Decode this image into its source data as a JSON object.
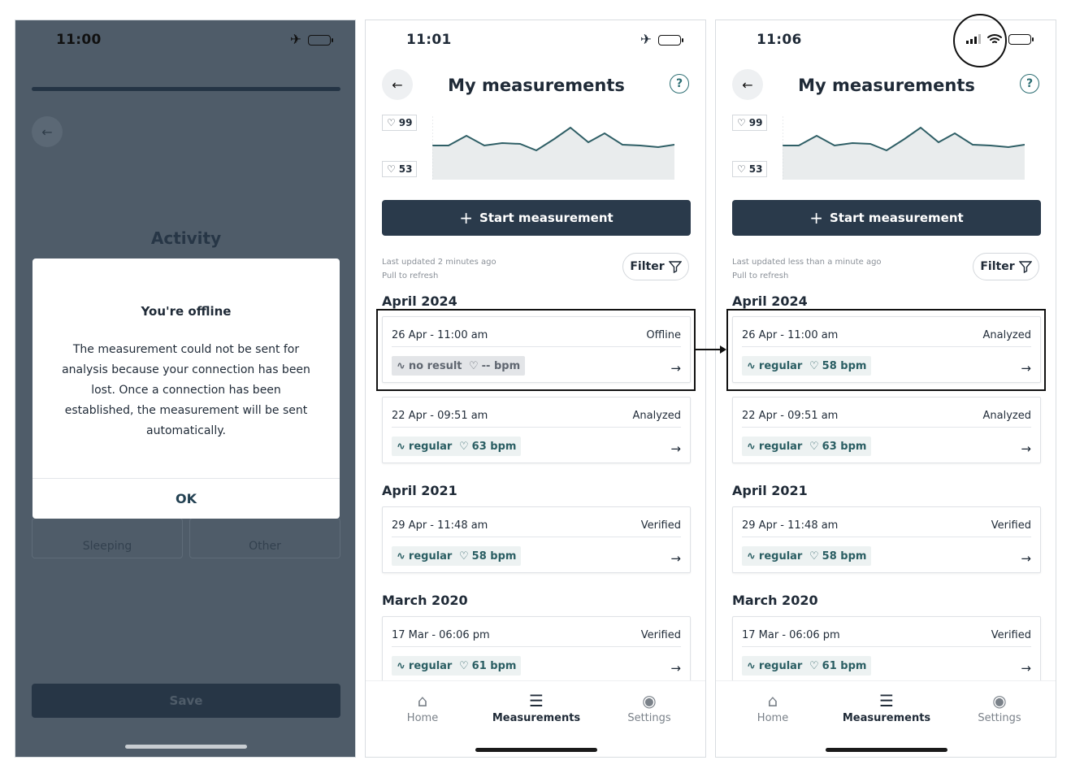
{
  "screens": {
    "offline_dialog": {
      "time": "11:00",
      "activity_title": "Activity",
      "options": [
        "Sleeping",
        "Other"
      ],
      "save_label": "Save",
      "dialog": {
        "title": "You're offline",
        "body": "The measurement could not be sent for analysis because your connection has been lost. Once a connection has been established, the measurement will be sent automatically.",
        "ok_label": "OK"
      }
    },
    "offline_list": {
      "time": "11:01",
      "title": "My measurements",
      "hr_max": "99",
      "hr_min": "53",
      "start_label": "Start measurement",
      "last_updated": "Last updated 2 minutes ago",
      "pull_hint": "Pull to refresh",
      "filter_label": "Filter",
      "groups": [
        {
          "month": "April 2024",
          "items": [
            {
              "date": "26 Apr - 11:00 am",
              "status": "Offline",
              "rhythm": "no result",
              "bpm": "-- bpm"
            },
            {
              "date": "22 Apr - 09:51 am",
              "status": "Analyzed",
              "rhythm": "regular",
              "bpm": "63 bpm"
            }
          ]
        },
        {
          "month": "April 2021",
          "items": [
            {
              "date": "29 Apr - 11:48 am",
              "status": "Verified",
              "rhythm": "regular",
              "bpm": "58 bpm"
            }
          ]
        },
        {
          "month": "March 2020",
          "items": [
            {
              "date": "17 Mar - 06:06 pm",
              "status": "Verified",
              "rhythm": "regular",
              "bpm": "61 bpm"
            }
          ]
        }
      ],
      "tabs": [
        "Home",
        "Measurements",
        "Settings"
      ]
    },
    "online_list": {
      "time": "11:06",
      "title": "My measurements",
      "hr_max": "99",
      "hr_min": "53",
      "start_label": "Start measurement",
      "last_updated": "Last updated less than a minute ago",
      "pull_hint": "Pull to refresh",
      "filter_label": "Filter",
      "groups": [
        {
          "month": "April 2024",
          "items": [
            {
              "date": "26 Apr - 11:00 am",
              "status": "Analyzed",
              "rhythm": "regular",
              "bpm": "58 bpm"
            },
            {
              "date": "22 Apr - 09:51 am",
              "status": "Analyzed",
              "rhythm": "regular",
              "bpm": "63 bpm"
            }
          ]
        },
        {
          "month": "April 2021",
          "items": [
            {
              "date": "29 Apr - 11:48 am",
              "status": "Verified",
              "rhythm": "regular",
              "bpm": "58 bpm"
            }
          ]
        },
        {
          "month": "March 2020",
          "items": [
            {
              "date": "17 Mar - 06:06 pm",
              "status": "Verified",
              "rhythm": "regular",
              "bpm": "61 bpm"
            }
          ]
        }
      ],
      "tabs": [
        "Home",
        "Measurements",
        "Settings"
      ]
    }
  },
  "icons": {
    "back": "arrow-left-icon",
    "help": "question-icon",
    "heart": "heart-icon",
    "rhythm": "pulse-icon",
    "filter": "funnel-icon",
    "row_arrow": "arrow-right-icon",
    "tabs": [
      "home-icon",
      "list-icon",
      "user-circle-icon"
    ]
  },
  "colors": {
    "primary_dark": "#2a3a4b",
    "accent_teal": "#2a5e63",
    "overlay": "#4f5c69"
  }
}
